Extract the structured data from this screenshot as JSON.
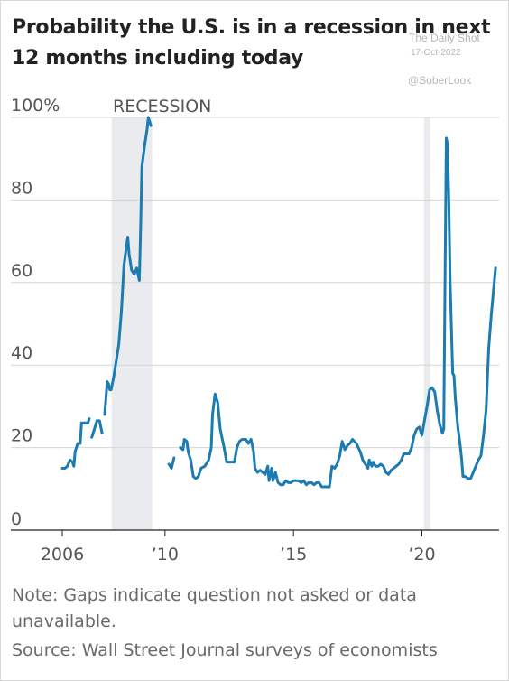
{
  "chart_data": {
    "type": "line",
    "title": "Probability the U.S. is in a recession in next 12 months including today",
    "xlabel": "",
    "ylabel": "",
    "xlim": [
      2006,
      2022.9
    ],
    "ylim": [
      0,
      100
    ],
    "yticks": [
      {
        "value": 0,
        "label": "0"
      },
      {
        "value": 20,
        "label": "20"
      },
      {
        "value": 40,
        "label": "40"
      },
      {
        "value": 60,
        "label": "60"
      },
      {
        "value": 80,
        "label": "80"
      },
      {
        "value": 100,
        "label": "100%"
      }
    ],
    "xticks": [
      {
        "value": 2006,
        "label": "2006"
      },
      {
        "value": 2010,
        "label": "’10"
      },
      {
        "value": 2015,
        "label": "’15"
      },
      {
        "value": 2020,
        "label": "’20"
      }
    ],
    "grid": "horizontal",
    "recession_label": "RECESSION",
    "recessions": [
      {
        "start": 2007.92,
        "end": 2009.5
      },
      {
        "start": 2020.08,
        "end": 2020.33
      }
    ],
    "color": "#1c7bb0",
    "series": [
      {
        "name": "",
        "segments": [
          [
            [
              2006.0,
              15
            ],
            [
              2006.1,
              15
            ],
            [
              2006.2,
              15.5
            ],
            [
              2006.3,
              17
            ],
            [
              2006.4,
              16.5
            ],
            [
              2006.45,
              15.5
            ],
            [
              2006.5,
              19
            ],
            [
              2006.6,
              21
            ],
            [
              2006.7,
              21
            ],
            [
              2006.75,
              26
            ],
            [
              2006.85,
              26
            ],
            [
              2006.95,
              26
            ],
            [
              2007.0,
              26
            ],
            [
              2007.05,
              27
            ]
          ],
          [
            [
              2007.15,
              22.5
            ],
            [
              2007.25,
              24.5
            ],
            [
              2007.35,
              26.5
            ],
            [
              2007.45,
              26.5
            ],
            [
              2007.55,
              23.5
            ]
          ],
          [
            [
              2007.65,
              28
            ],
            [
              2007.75,
              36
            ],
            [
              2007.8,
              35.5
            ],
            [
              2007.85,
              34
            ],
            [
              2007.9,
              34
            ],
            [
              2008.0,
              37
            ],
            [
              2008.1,
              41
            ],
            [
              2008.2,
              45
            ],
            [
              2008.3,
              53
            ],
            [
              2008.4,
              64
            ],
            [
              2008.5,
              69
            ],
            [
              2008.55,
              71
            ],
            [
              2008.6,
              67
            ],
            [
              2008.7,
              63
            ],
            [
              2008.8,
              62
            ],
            [
              2008.9,
              63.5
            ],
            [
              2009.0,
              60.5
            ],
            [
              2009.05,
              73
            ],
            [
              2009.1,
              88
            ],
            [
              2009.2,
              93
            ],
            [
              2009.3,
              97
            ],
            [
              2009.35,
              100
            ],
            [
              2009.45,
              98
            ]
          ],
          [
            [
              2010.15,
              16
            ],
            [
              2010.25,
              15
            ],
            [
              2010.35,
              17.5
            ]
          ],
          [
            [
              2010.6,
              20
            ],
            [
              2010.7,
              19.5
            ],
            [
              2010.75,
              22
            ],
            [
              2010.85,
              21.5
            ],
            [
              2010.9,
              19
            ],
            [
              2011.0,
              17
            ],
            [
              2011.1,
              13
            ],
            [
              2011.2,
              12.5
            ],
            [
              2011.3,
              13
            ],
            [
              2011.4,
              15
            ],
            [
              2011.55,
              15.5
            ],
            [
              2011.7,
              17
            ],
            [
              2011.8,
              20
            ],
            [
              2011.85,
              28
            ],
            [
              2011.95,
              33
            ],
            [
              2012.05,
              31
            ],
            [
              2012.15,
              24.5
            ],
            [
              2012.3,
              20
            ],
            [
              2012.4,
              16.5
            ],
            [
              2012.5,
              16.5
            ],
            [
              2012.7,
              16.5
            ],
            [
              2012.8,
              20
            ],
            [
              2012.9,
              21.5
            ],
            [
              2013.0,
              22
            ],
            [
              2013.15,
              22
            ],
            [
              2013.25,
              21
            ],
            [
              2013.35,
              22
            ],
            [
              2013.45,
              19
            ],
            [
              2013.5,
              15
            ],
            [
              2013.6,
              14
            ],
            [
              2013.7,
              14.5
            ],
            [
              2013.8,
              14
            ],
            [
              2013.9,
              13.5
            ],
            [
              2014.0,
              15.5
            ],
            [
              2014.05,
              12
            ],
            [
              2014.15,
              15
            ],
            [
              2014.2,
              12
            ],
            [
              2014.3,
              14
            ],
            [
              2014.4,
              11.5
            ],
            [
              2014.5,
              11
            ],
            [
              2014.6,
              11
            ],
            [
              2014.7,
              12
            ],
            [
              2014.8,
              11.5
            ],
            [
              2014.9,
              11.5
            ],
            [
              2015.0,
              12
            ],
            [
              2015.1,
              12
            ],
            [
              2015.2,
              12
            ],
            [
              2015.3,
              11.5
            ],
            [
              2015.4,
              12
            ],
            [
              2015.5,
              11
            ],
            [
              2015.6,
              11.5
            ],
            [
              2015.7,
              11.5
            ],
            [
              2015.8,
              11
            ],
            [
              2015.9,
              11.5
            ],
            [
              2016.0,
              11.5
            ],
            [
              2016.1,
              10.5
            ],
            [
              2016.2,
              10.5
            ],
            [
              2016.3,
              10.5
            ],
            [
              2016.4,
              10.5
            ],
            [
              2016.5,
              15.5
            ],
            [
              2016.6,
              15
            ],
            [
              2016.7,
              16
            ],
            [
              2016.8,
              18
            ],
            [
              2016.9,
              21.5
            ],
            [
              2017.0,
              19.5
            ],
            [
              2017.1,
              20.5
            ],
            [
              2017.2,
              21
            ],
            [
              2017.3,
              22
            ],
            [
              2017.45,
              21
            ],
            [
              2017.6,
              19
            ],
            [
              2017.7,
              17
            ],
            [
              2017.8,
              16
            ],
            [
              2017.9,
              15
            ],
            [
              2017.95,
              17
            ],
            [
              2018.05,
              15.5
            ],
            [
              2018.1,
              16.5
            ],
            [
              2018.2,
              15.5
            ],
            [
              2018.3,
              15.5
            ],
            [
              2018.4,
              16
            ],
            [
              2018.5,
              15.5
            ],
            [
              2018.6,
              14
            ],
            [
              2018.7,
              13.5
            ],
            [
              2018.8,
              14.5
            ],
            [
              2018.9,
              15
            ],
            [
              2019.0,
              15.5
            ],
            [
              2019.1,
              16
            ],
            [
              2019.2,
              17
            ],
            [
              2019.3,
              18.5
            ],
            [
              2019.5,
              18.5
            ],
            [
              2019.6,
              20
            ],
            [
              2019.7,
              23
            ],
            [
              2019.8,
              24.5
            ],
            [
              2019.9,
              25
            ],
            [
              2020.0,
              23
            ],
            [
              2020.1,
              26.5
            ],
            [
              2020.2,
              30
            ],
            [
              2020.3,
              34
            ],
            [
              2020.4,
              34.5
            ],
            [
              2020.5,
              33.5
            ],
            [
              2020.6,
              29
            ],
            [
              2020.7,
              25.5
            ],
            [
              2020.8,
              23.5
            ],
            [
              2020.85,
              24.5
            ],
            [
              2020.9,
              60
            ],
            [
              2020.95,
              95
            ],
            [
              2021.0,
              93.5
            ],
            [
              2021.05,
              80
            ],
            [
              2021.1,
              60
            ],
            [
              2021.15,
              49
            ],
            [
              2021.2,
              38
            ],
            [
              2021.25,
              37.5
            ],
            [
              2021.3,
              32
            ],
            [
              2021.4,
              25
            ],
            [
              2021.5,
              20
            ],
            [
              2021.55,
              17
            ],
            [
              2021.6,
              13
            ],
            [
              2021.7,
              13
            ],
            [
              2021.8,
              12.5
            ],
            [
              2021.9,
              12.5
            ],
            [
              2022.0,
              14
            ],
            [
              2022.1,
              15.5
            ],
            [
              2022.2,
              17
            ],
            [
              2022.3,
              18
            ],
            [
              2022.4,
              23
            ],
            [
              2022.5,
              29
            ],
            [
              2022.6,
              44
            ],
            [
              2022.7,
              52
            ],
            [
              2022.8,
              59
            ],
            [
              2022.87,
              63.5
            ]
          ]
        ]
      }
    ]
  },
  "watermark": {
    "source": "The Daily Shot",
    "date": "17-Oct-2022",
    "handle": "@SoberLook"
  },
  "footer": {
    "note": "Note: Gaps indicate question not asked or data unavailable.",
    "source": "Source: Wall Street Journal surveys of economists"
  }
}
